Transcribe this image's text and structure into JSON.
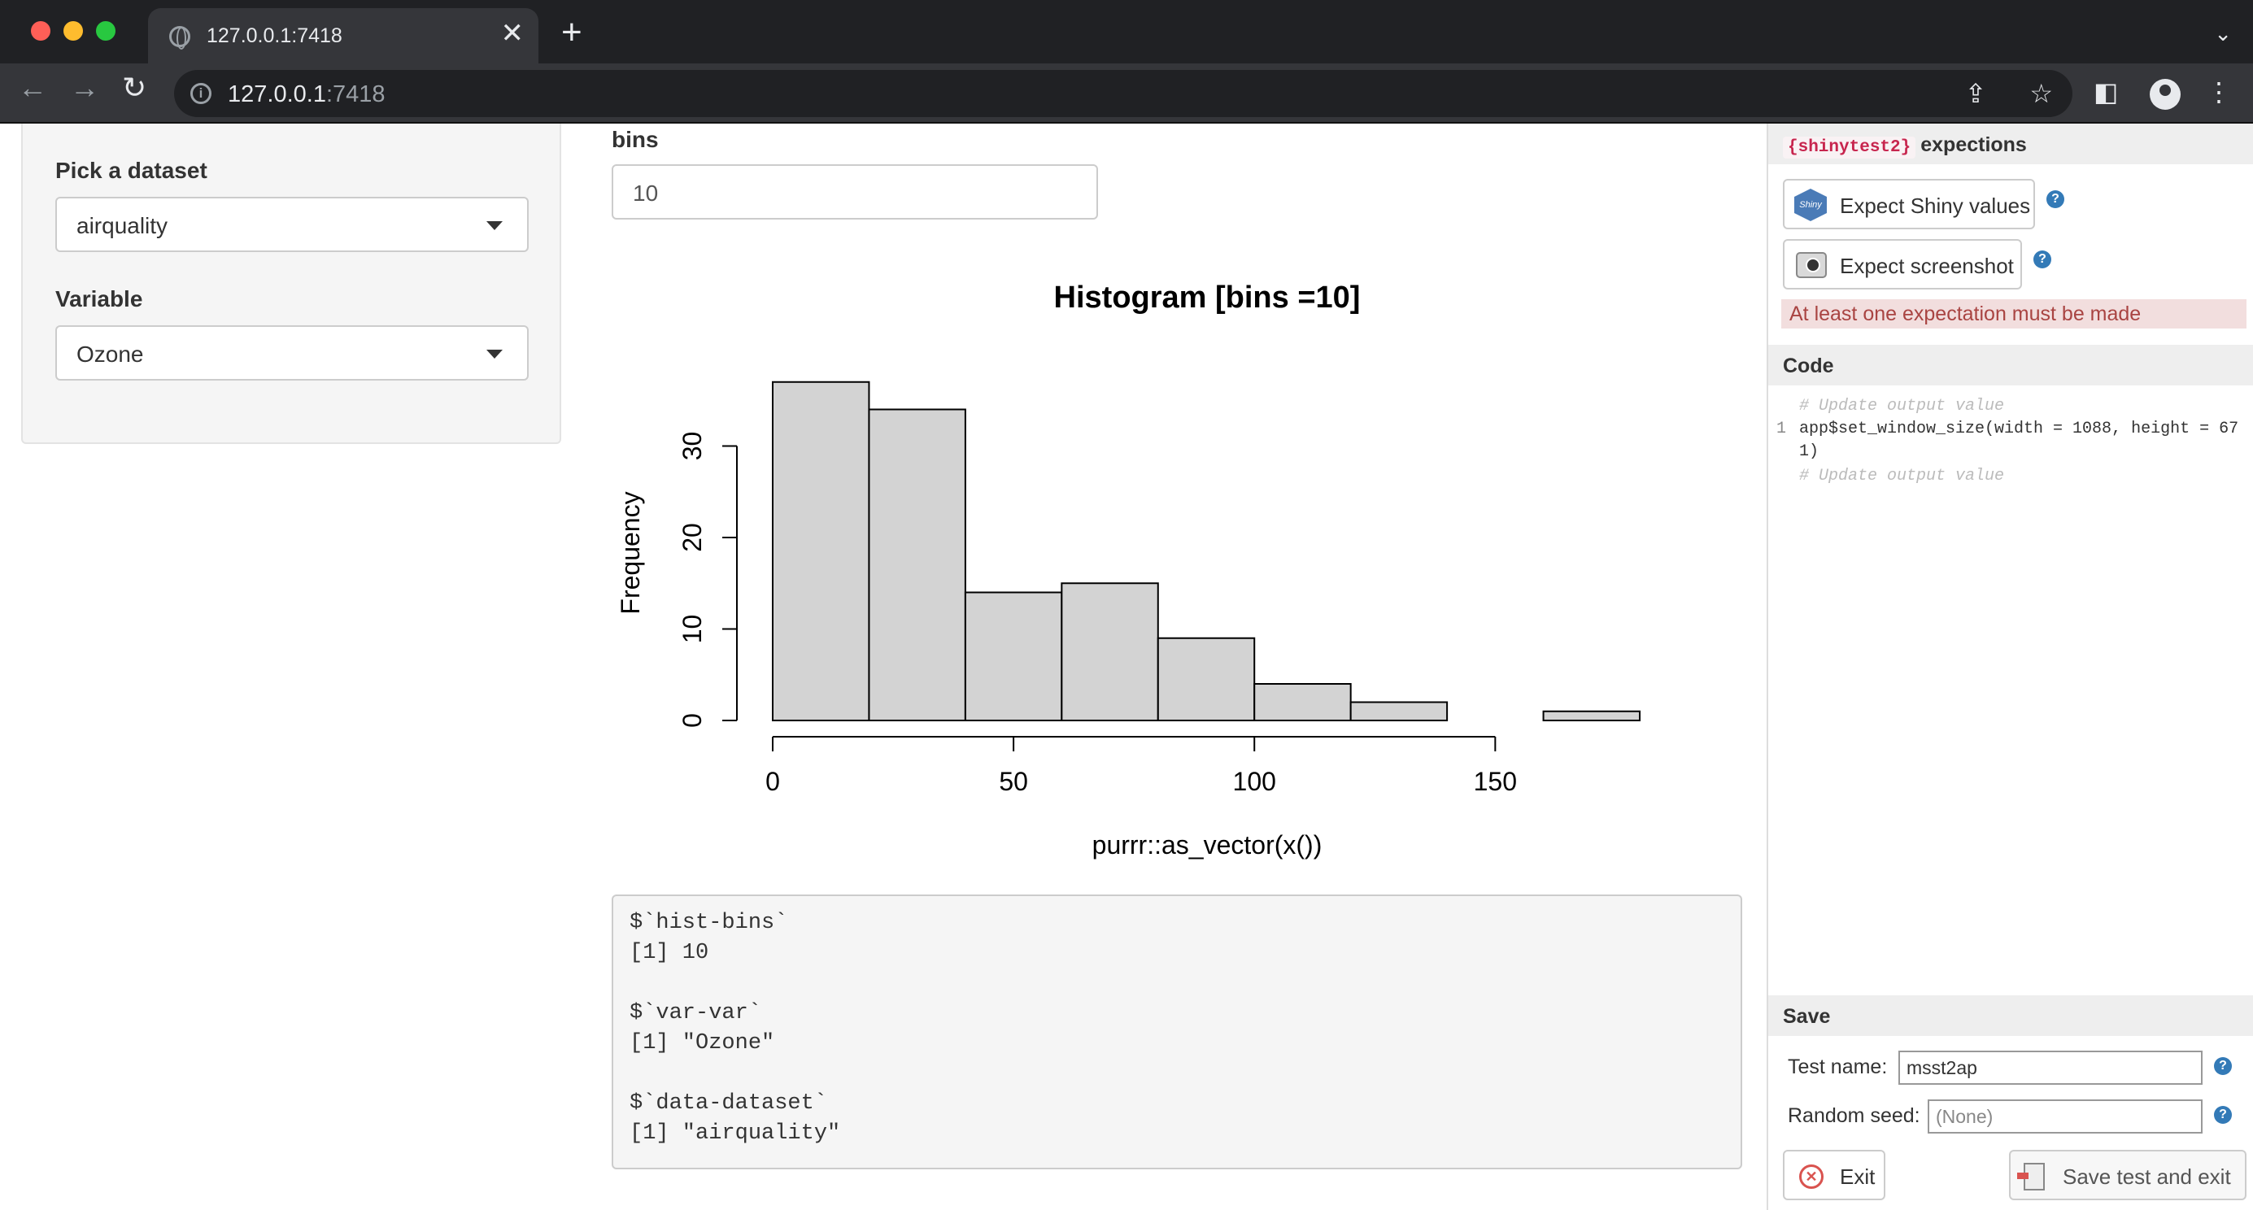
{
  "browser": {
    "tab_title": "127.0.0.1:7418",
    "url_host": "127.0.0.1",
    "url_port": ":7418",
    "close_glyph": "✕",
    "new_tab_glyph": "+",
    "tab_list_glyph": "⌄",
    "back_glyph": "←",
    "forward_glyph": "→",
    "reload_glyph": "↻",
    "share_glyph": "⇪",
    "bookmark_glyph": "☆",
    "sidepanel_glyph": "◧",
    "menu_glyph": "⋮",
    "info_glyph": "i"
  },
  "sidebar": {
    "dataset_label": "Pick a dataset",
    "dataset_value": "airquality",
    "variable_label": "Variable",
    "variable_value": "Ozone"
  },
  "main": {
    "bins_label": "bins",
    "bins_value": "10"
  },
  "chart_data": {
    "type": "bar",
    "title": "Histogram [bins =10]",
    "xlabel": "purrr::as_vector(x())",
    "ylabel": "Frequency",
    "bin_edges": [
      0,
      20,
      40,
      60,
      80,
      100,
      120,
      140,
      160,
      180
    ],
    "values": [
      37,
      34,
      14,
      15,
      9,
      4,
      2,
      0,
      1
    ],
    "xlim": [
      0,
      180
    ],
    "ylim": [
      0,
      30
    ],
    "x_ticks": [
      "0",
      "50",
      "100",
      "150"
    ],
    "y_ticks": [
      "0",
      "10",
      "20",
      "30"
    ],
    "bar_color": "#d3d3d3"
  },
  "output": {
    "lines": [
      "$`hist-bins`",
      "[1] 10",
      "",
      "$`var-var`",
      "[1] \"Ozone\"",
      "",
      "$`data-dataset`",
      "[1] \"airquality\""
    ]
  },
  "recorder": {
    "pkg_tag": "{shinytest2}",
    "expect_header": "expections",
    "expect_values_label": "Expect Shiny values",
    "expect_screenshot_label": "Expect screenshot",
    "help_glyph": "?",
    "shiny_logo_text": "Shiny",
    "warning": "At least one expectation must be made",
    "code_header": "Code",
    "code_comment": "# Update output value",
    "code_line_no": "1",
    "code_line_a": "app$set_window_size(width = 1088, height = 67",
    "code_line_b": "1)",
    "save_header": "Save",
    "test_name_label": "Test name:",
    "test_name_value": "msst2ap",
    "seed_label": "Random seed:",
    "seed_placeholder": "(None)",
    "exit_label": "Exit",
    "exit_glyph": "✕",
    "save_exit_label": "Save test and exit"
  }
}
